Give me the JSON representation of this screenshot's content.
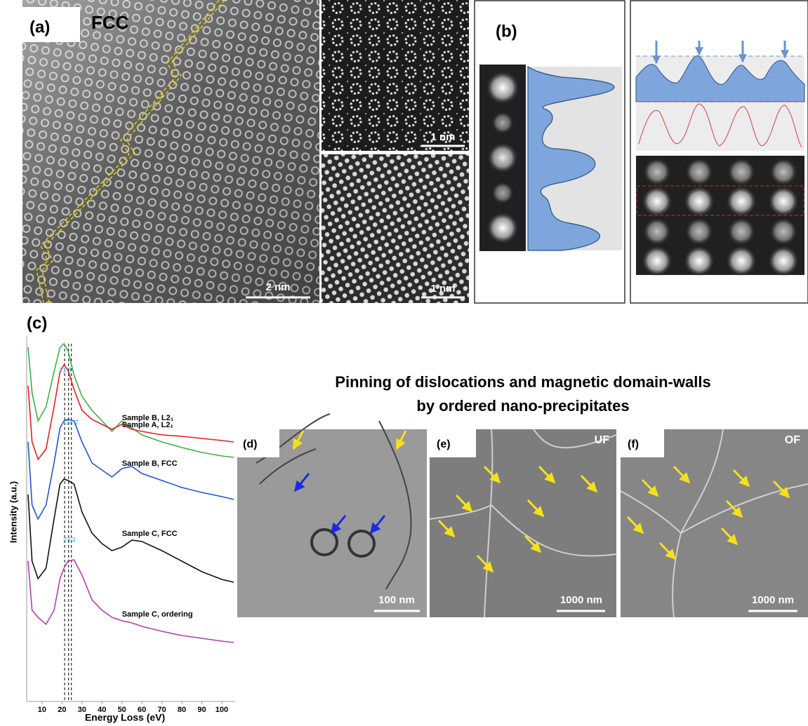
{
  "panel_a": {
    "label": "(a)",
    "title": "FCC",
    "scale_bars": [
      "2 nm",
      "1 nm",
      "1 nm"
    ]
  },
  "panel_b": {
    "label": "(b)"
  },
  "heading": {
    "line1": "Pinning of dislocations and magnetic domain-walls",
    "line2": "by ordered nano-precipitates"
  },
  "panel_d": {
    "label": "(d)",
    "scale_bar": "100 nm"
  },
  "panel_e": {
    "label": "(e)",
    "tag": "UF",
    "scale_bar": "1000 nm"
  },
  "panel_f": {
    "label": "(f)",
    "tag": "OF",
    "scale_bar": "1000 nm"
  },
  "chart_data": {
    "type": "line",
    "label": "(c)",
    "xlabel": "Energy Loss (eV)",
    "ylabel": "Intensity (a.u.)",
    "x": [
      3,
      5,
      8,
      12,
      16,
      19,
      21,
      23,
      26,
      30,
      35,
      40,
      45,
      50,
      55,
      60,
      70,
      80,
      90,
      100,
      106
    ],
    "series": [
      {
        "name": "Sample A, L2₁",
        "color": "#3cb043",
        "values": [
          505,
          440,
          400,
          420,
          470,
          505,
          510,
          500,
          465,
          435,
          415,
          400,
          385,
          400,
          390,
          380,
          370,
          362,
          355,
          350,
          348
        ]
      },
      {
        "name": "Sample B, L2₁",
        "color": "#e02020",
        "values": [
          450,
          370,
          345,
          360,
          420,
          470,
          480,
          472,
          445,
          415,
          402,
          395,
          388,
          395,
          388,
          385,
          380,
          378,
          375,
          372,
          370
        ]
      },
      {
        "name": "Sample B, FCC",
        "color": "#2255cc",
        "values": [
          370,
          280,
          260,
          280,
          340,
          390,
          400,
          402,
          400,
          370,
          340,
          330,
          320,
          332,
          335,
          325,
          315,
          305,
          298,
          292,
          288
        ]
      },
      {
        "name": "Sample C, FCC",
        "color": "#111111",
        "values": [
          295,
          200,
          175,
          190,
          260,
          310,
          317,
          315,
          310,
          270,
          240,
          225,
          215,
          220,
          230,
          228,
          215,
          200,
          185,
          174,
          170
        ]
      },
      {
        "name": "Sample C, ordering",
        "color": "#b040b0",
        "values": [
          200,
          130,
          120,
          110,
          130,
          175,
          190,
          200,
          202,
          180,
          145,
          130,
          120,
          115,
          112,
          107,
          100,
          94,
          90,
          86,
          84
        ]
      }
    ],
    "peak_energies": [
      21.3,
      24.7,
      23.3
    ],
    "xlim": [
      2.3,
      106.7
    ],
    "ylim": [
      0,
      540
    ],
    "xticks": [
      10,
      20,
      30,
      40,
      50,
      60,
      70,
      80,
      90,
      100
    ]
  }
}
